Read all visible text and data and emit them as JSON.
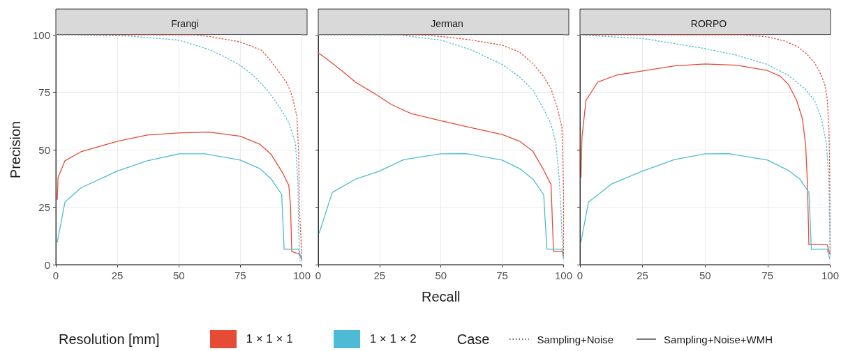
{
  "chart_data": [
    {
      "type": "line",
      "title": "Frangi",
      "ylabel": "Precision",
      "legend_title": "Resolution [mm]",
      "legend": "bottom",
      "annotations": [
        "Case",
        "Sampling+Noise",
        "Sampling+Noise+WMH"
      ],
      "xlim": [
        0,
        100
      ],
      "ylim": [
        0,
        100
      ],
      "xticks": [
        0,
        25,
        50,
        75,
        100
      ],
      "yticks": [
        0,
        25,
        50,
        75,
        100
      ],
      "grid": true,
      "marker": "none",
      "series": [
        {
          "name": "1 × 1 × 1",
          "color": "#e64b35",
          "line_style": "dotted",
          "x": [
            0,
            56,
            62.3,
            75,
            83.6,
            86.9,
            90.8,
            94.1,
            96.1,
            98,
            98.7,
            99,
            100
          ],
          "values": [
            100,
            100,
            99.3,
            96.9,
            93.3,
            89.3,
            83.8,
            78.7,
            73.2,
            64.5,
            48.6,
            24.8,
            2.6
          ]
        },
        {
          "name": "1 × 1 × 2",
          "color": "#4dbbd5",
          "line_style": "dotted",
          "x": [
            0,
            29.1,
            50,
            62.3,
            68.7,
            75,
            80.3,
            85.5,
            90.8,
            94.7,
            97.4,
            98.4,
            98.7,
            99.3
          ],
          "values": [
            100,
            99.5,
            97.7,
            93.6,
            90.4,
            86.7,
            82.3,
            76.5,
            68.8,
            61.8,
            52.8,
            35.7,
            13.8,
            1.6
          ]
        },
        {
          "color": "#e64b35",
          "line_style": "solid",
          "x": [
            0.6,
            0.9,
            3.7,
            10.2,
            25,
            37.2,
            50,
            62.3,
            75,
            82.9,
            87.5,
            92.1,
            94.7,
            95.4,
            95.9,
            98.7,
            100
          ],
          "values": [
            28.4,
            37.9,
            45.2,
            49.1,
            53.7,
            56.4,
            57.3,
            57.7,
            55.9,
            52.4,
            48,
            40.1,
            34.5,
            25.6,
            5.7,
            4.7,
            2.6
          ]
        },
        {
          "color": "#4dbbd5",
          "line_style": "solid",
          "x": [
            0.6,
            3.7,
            10.2,
            25,
            37.2,
            50,
            60.7,
            75,
            82.9,
            87.5,
            91.8,
            92.8,
            98.7,
            100
          ],
          "values": [
            9.8,
            27.2,
            33.4,
            40.7,
            45.2,
            48.2,
            48.2,
            45.5,
            41.8,
            37.3,
            30.6,
            6.7,
            6.7,
            1.6
          ]
        }
      ]
    },
    {
      "type": "line",
      "title": "Jerman",
      "xlabel": "Recall",
      "tick_labels": "x",
      "xlim": [
        0,
        100
      ],
      "ylim": [
        0,
        100
      ],
      "xticks": [
        0,
        25,
        50,
        75,
        100
      ],
      "yticks": [
        0,
        25,
        50,
        75,
        100
      ],
      "grid": true,
      "marker": "none",
      "series": [
        {
          "color": "#e64b35",
          "line_style": "dotted",
          "x": [
            0,
            40,
            50,
            62.7,
            75,
            82.1,
            87.5,
            91.6,
            94.9,
            97.3,
            99.3,
            99.7,
            100,
            100
          ],
          "values": [
            100,
            100,
            99.3,
            97.7,
            95.5,
            92.5,
            87.4,
            82.3,
            76.5,
            68.8,
            59.9,
            46.9,
            30,
            3.7
          ]
        },
        {
          "color": "#4dbbd5",
          "line_style": "dotted",
          "x": [
            0,
            33.2,
            50,
            62.7,
            75,
            82.1,
            87.5,
            92.2,
            94.9,
            96.9,
            98.2,
            98.9,
            99.6
          ],
          "values": [
            100,
            99.9,
            97.7,
            93.3,
            87.1,
            81.6,
            75.9,
            67.1,
            61.2,
            52.8,
            37.9,
            24.8,
            5.7
          ]
        },
        {
          "color": "#e64b35",
          "line_style": "solid",
          "x": [
            0,
            4.7,
            9.5,
            15.2,
            22.7,
            29.8,
            37.9,
            50,
            62.7,
            75,
            82.1,
            87.5,
            91.6,
            94.9,
            95.9,
            99.6,
            100
          ],
          "values": [
            92.2,
            88.5,
            84.5,
            79.4,
            74.6,
            69.7,
            65.7,
            62.6,
            59.5,
            56.6,
            53.7,
            49.3,
            41.8,
            34.8,
            5.7,
            5.7,
            3.7
          ]
        },
        {
          "color": "#4dbbd5",
          "line_style": "solid",
          "x": [
            0.4,
            5.7,
            15.2,
            25,
            34.9,
            50,
            60.3,
            75,
            82.1,
            87.5,
            91.9,
            93.2,
            99.3,
            100
          ],
          "values": [
            13.8,
            31.4,
            37.2,
            40.7,
            45.7,
            48.2,
            48.3,
            45.5,
            41.8,
            37.2,
            30.4,
            6.7,
            6.7,
            2.6
          ]
        }
      ]
    },
    {
      "type": "line",
      "title": "RORPO",
      "tick_labels": "x",
      "xlim": [
        0,
        100
      ],
      "ylim": [
        0,
        100
      ],
      "xticks": [
        0,
        25,
        50,
        75,
        100
      ],
      "yticks": [
        0,
        25,
        50,
        75,
        100
      ],
      "grid": true,
      "marker": "none",
      "series": [
        {
          "color": "#e64b35",
          "line_style": "dotted",
          "x": [
            0,
            65,
            75,
            81.9,
            87.2,
            90.5,
            93.8,
            95.8,
            97.8,
            98.8,
            99.5,
            99.8,
            100
          ],
          "values": [
            100,
            100,
            99.1,
            97.3,
            94.7,
            91.8,
            87.8,
            83.8,
            78.7,
            72.3,
            60,
            40.2,
            3.7
          ]
        },
        {
          "color": "#4dbbd5",
          "line_style": "dotted",
          "x": [
            0,
            25,
            37.8,
            50,
            62.7,
            75,
            83.3,
            89.9,
            93.8,
            96.5,
            98.5,
            99.5,
            100
          ],
          "values": [
            99.9,
            98.4,
            96.2,
            94,
            91.1,
            87.1,
            82.3,
            76.5,
            71.4,
            63.5,
            52.8,
            35.7,
            3.7
          ]
        },
        {
          "color": "#e64b35",
          "line_style": "solid",
          "x": [
            0.4,
            0.8,
            2.4,
            7.1,
            14.7,
            25,
            37.8,
            50,
            62.7,
            75,
            80,
            83.3,
            86.6,
            88.9,
            90.2,
            90.9,
            91.5,
            98.8,
            99.8
          ],
          "values": [
            37.9,
            55.5,
            71.5,
            79.4,
            82.5,
            84.3,
            86.5,
            87.3,
            86.8,
            84.4,
            82,
            78.4,
            71.5,
            63.5,
            52,
            35.7,
            8.7,
            8.7,
            4.7
          ]
        },
        {
          "color": "#4dbbd5",
          "line_style": "solid",
          "x": [
            0.4,
            3.4,
            12.8,
            25,
            37.8,
            50,
            59.5,
            75,
            83.3,
            87.9,
            91.5,
            92.5,
            98.8,
            99.8
          ],
          "values": [
            9.8,
            27.2,
            35.2,
            40.7,
            45.7,
            48.2,
            48.3,
            45.5,
            41,
            37.2,
            31.5,
            6.7,
            6.7,
            2.6
          ]
        }
      ]
    }
  ]
}
